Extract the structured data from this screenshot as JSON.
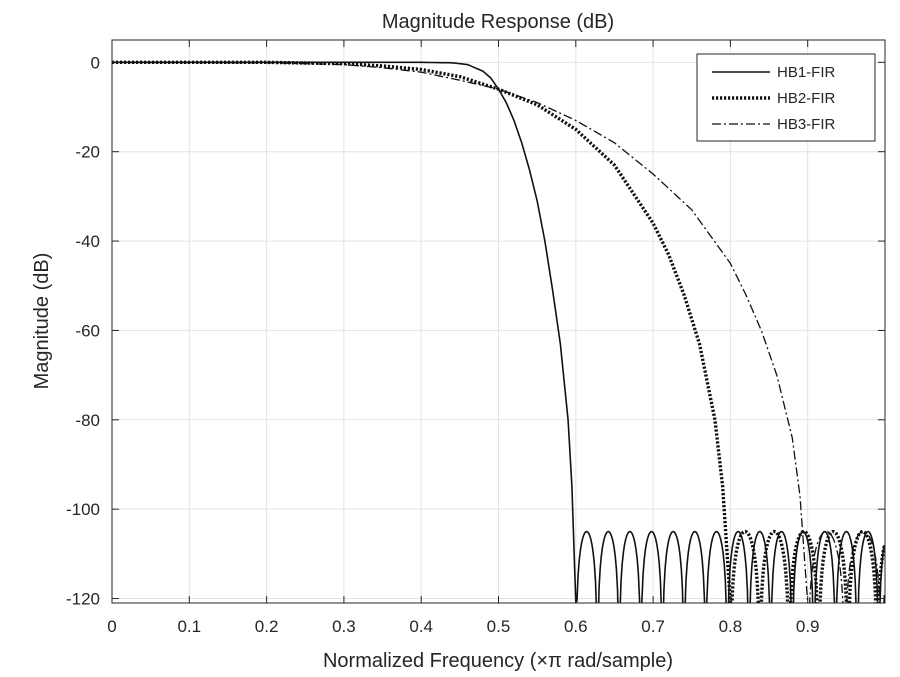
{
  "chart_data": {
    "type": "line",
    "title": "Magnitude Response (dB)",
    "xlabel": "Normalized Frequency (×π rad/sample)",
    "ylabel": "Magnitude (dB)",
    "xlim": [
      0,
      1
    ],
    "ylim": [
      -121,
      5
    ],
    "xticks": [
      "0",
      "0.1",
      "0.2",
      "0.3",
      "0.4",
      "0.5",
      "0.6",
      "0.7",
      "0.8",
      "0.9"
    ],
    "xtick_values": [
      0,
      0.1,
      0.2,
      0.3,
      0.4,
      0.5,
      0.6,
      0.7,
      0.8,
      0.9
    ],
    "yticks": [
      "0",
      "-20",
      "-40",
      "-60",
      "-80",
      "-100",
      "-120"
    ],
    "ytick_values": [
      0,
      -20,
      -40,
      -60,
      -80,
      -100,
      -120
    ],
    "grid": true,
    "legend_position": "top-right",
    "stopband_ripple_db": -105,
    "series": [
      {
        "name": "HB1-FIR",
        "style": "solid",
        "stopband_ripple_period": 0.028,
        "x": [
          0,
          0.3,
          0.4,
          0.44,
          0.46,
          0.48,
          0.49,
          0.5,
          0.51,
          0.52,
          0.53,
          0.54,
          0.55,
          0.56,
          0.57,
          0.58,
          0.59,
          0.595,
          0.6
        ],
        "y": [
          0,
          0,
          0,
          -0.1,
          -0.5,
          -2,
          -3.5,
          -6,
          -9,
          -13,
          -18,
          -24,
          -31,
          -40,
          -51,
          -63,
          -80,
          -95,
          -121
        ]
      },
      {
        "name": "HB2-FIR",
        "style": "dotted",
        "stopband_ripple_period": 0.038,
        "x": [
          0,
          0.2,
          0.3,
          0.35,
          0.4,
          0.45,
          0.5,
          0.55,
          0.6,
          0.65,
          0.7,
          0.72,
          0.74,
          0.76,
          0.78,
          0.79,
          0.8
        ],
        "y": [
          0,
          0,
          -0.3,
          -0.8,
          -1.6,
          -3.2,
          -6,
          -9.5,
          -15,
          -23,
          -36,
          -43,
          -52,
          -63,
          -80,
          -95,
          -121
        ]
      },
      {
        "name": "HB3-FIR",
        "style": "dash-dot",
        "stopband_ripple_period": 0.048,
        "x": [
          0,
          0.2,
          0.3,
          0.35,
          0.4,
          0.45,
          0.5,
          0.55,
          0.6,
          0.65,
          0.7,
          0.75,
          0.8,
          0.82,
          0.84,
          0.86,
          0.88,
          0.89,
          0.9
        ],
        "y": [
          0,
          -0.1,
          -0.5,
          -1.2,
          -2.2,
          -4,
          -6,
          -9,
          -13,
          -18,
          -25,
          -33,
          -45,
          -52,
          -60,
          -70,
          -84,
          -97,
          -121
        ]
      }
    ]
  }
}
